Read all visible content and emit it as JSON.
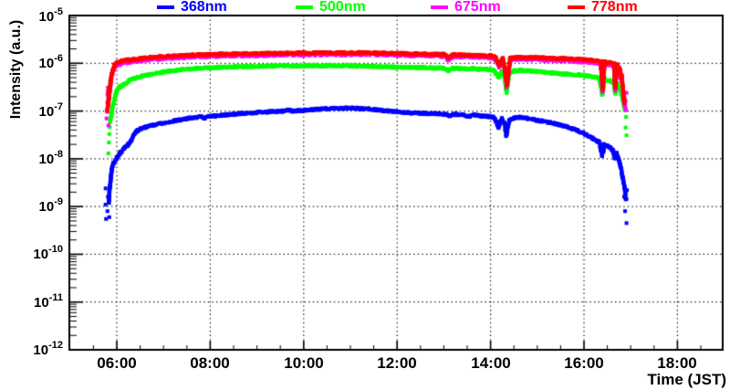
{
  "chart_data": {
    "type": "scatter",
    "title": "",
    "xlabel": "Time (JST)",
    "ylabel": "Intensity (a.u.)",
    "grid": {
      "style": "dotted",
      "color": "#1a1a1a"
    },
    "background": "#ffffff",
    "x_axis": {
      "unit": "hour of day (JST)",
      "range_hours": [
        5.0,
        19.0
      ],
      "major_tick_hours": [
        6,
        8,
        10,
        12,
        14,
        16,
        18
      ],
      "minor_tick_step_hours": 0.5,
      "tick_labels": [
        "06:00",
        "08:00",
        "10:00",
        "12:00",
        "14:00",
        "16:00",
        "18:00"
      ]
    },
    "y_axis": {
      "scale": "log",
      "range": [
        1e-12,
        1e-05
      ],
      "tick_base": "10",
      "tick_exponents": [
        "-5",
        "-6",
        "-7",
        "-8",
        "-9",
        "-10",
        "-11",
        "-12"
      ]
    },
    "legend": {
      "position": "top",
      "entries": [
        "368nm",
        "500nm",
        "675nm",
        "778nm"
      ]
    },
    "series": [
      {
        "name": "368nm",
        "color": "#0000ff",
        "points": [
          [
            5.83,
            1.2e-09
          ],
          [
            5.85,
            2.5e-09
          ],
          [
            5.87,
            4e-09
          ],
          [
            5.9,
            6.5e-09
          ],
          [
            5.93,
            8e-09
          ],
          [
            6.0,
            1.05e-08
          ],
          [
            6.08,
            1.35e-08
          ],
          [
            6.17,
            1.7e-08
          ],
          [
            6.25,
            2e-08
          ],
          [
            6.3,
            2.4e-08
          ],
          [
            6.37,
            3.3e-08
          ],
          [
            6.45,
            3.9e-08
          ],
          [
            6.5,
            4.2e-08
          ],
          [
            6.62,
            4.6e-08
          ],
          [
            6.75,
            5e-08
          ],
          [
            7.0,
            5.6e-08
          ],
          [
            7.25,
            6.3e-08
          ],
          [
            7.5,
            6.9e-08
          ],
          [
            7.7,
            7.4e-08
          ],
          [
            7.8,
            7.6e-08
          ],
          [
            7.88,
            7.1e-08
          ],
          [
            7.97,
            7.7e-08
          ],
          [
            8.1,
            7.9e-08
          ],
          [
            8.3,
            8.3e-08
          ],
          [
            8.5,
            8.6e-08
          ],
          [
            8.75,
            9e-08
          ],
          [
            9.0,
            9.3e-08
          ],
          [
            9.3,
            9.7e-08
          ],
          [
            9.55,
            1e-07
          ],
          [
            9.65,
            1.05e-07
          ],
          [
            9.75,
            1e-07
          ],
          [
            10.0,
            1.04e-07
          ],
          [
            10.3,
            1.09e-07
          ],
          [
            10.6,
            1.13e-07
          ],
          [
            10.9,
            1.15e-07
          ],
          [
            11.15,
            1.14e-07
          ],
          [
            11.4,
            1.1e-07
          ],
          [
            11.7,
            1.03e-07
          ],
          [
            12.0,
            9.6e-08
          ],
          [
            12.3,
            9.2e-08
          ],
          [
            12.6,
            8.9e-08
          ],
          [
            12.9,
            8.7e-08
          ],
          [
            13.05,
            8.5e-08
          ],
          [
            13.12,
            7.9e-08
          ],
          [
            13.2,
            8.5e-08
          ],
          [
            13.4,
            8.4e-08
          ],
          [
            13.55,
            7.7e-08
          ],
          [
            13.65,
            8.3e-08
          ],
          [
            13.8,
            7.9e-08
          ],
          [
            13.95,
            7.7e-08
          ],
          [
            14.08,
            7.3e-08
          ],
          [
            14.17,
            4.6e-08
          ],
          [
            14.24,
            6.9e-08
          ],
          [
            14.3,
            5.5e-08
          ],
          [
            14.34,
            3.1e-08
          ],
          [
            14.4,
            6.5e-08
          ],
          [
            14.5,
            7.2e-08
          ],
          [
            14.62,
            7.4e-08
          ],
          [
            14.8,
            7e-08
          ],
          [
            15.0,
            6.4e-08
          ],
          [
            15.25,
            5.8e-08
          ],
          [
            15.5,
            5.1e-08
          ],
          [
            15.75,
            4.3e-08
          ],
          [
            16.0,
            3.4e-08
          ],
          [
            16.2,
            2.6e-08
          ],
          [
            16.33,
            2.2e-08
          ],
          [
            16.39,
            1.15e-08
          ],
          [
            16.44,
            2e-08
          ],
          [
            16.55,
            1.75e-08
          ],
          [
            16.62,
            1.5e-08
          ],
          [
            16.66,
            1e-08
          ],
          [
            16.7,
            1.3e-08
          ],
          [
            16.76,
            8.5e-09
          ],
          [
            16.82,
            4.5e-09
          ],
          [
            16.87,
            2.4e-09
          ],
          [
            16.9,
            1.4e-09
          ]
        ],
        "scatter": [
          [
            5.76,
            2.4e-09
          ],
          [
            5.76,
            1.1e-09
          ],
          [
            5.77,
            5.5e-10
          ],
          [
            5.8,
            8e-10
          ],
          [
            5.81,
            1.6e-09
          ],
          [
            5.84,
            6e-10
          ],
          [
            16.88,
            8e-10
          ],
          [
            16.91,
            4.5e-10
          ],
          [
            16.86,
            1.6e-09
          ],
          [
            16.92,
            2.2e-09
          ]
        ]
      },
      {
        "name": "500nm",
        "color": "#00ff00",
        "points": [
          [
            5.86,
            6e-08
          ],
          [
            5.89,
            9e-08
          ],
          [
            5.92,
            1.3e-07
          ],
          [
            5.96,
            1.9e-07
          ],
          [
            6.0,
            2.7e-07
          ],
          [
            6.06,
            3.2e-07
          ],
          [
            6.13,
            3.5e-07
          ],
          [
            6.2,
            3.8e-07
          ],
          [
            6.28,
            4.5e-07
          ],
          [
            6.38,
            4.8e-07
          ],
          [
            6.5,
            5.3e-07
          ],
          [
            6.7,
            5.8e-07
          ],
          [
            7.0,
            6.6e-07
          ],
          [
            7.3,
            7.2e-07
          ],
          [
            7.6,
            7.7e-07
          ],
          [
            8.0,
            8.1e-07
          ],
          [
            8.4,
            8.4e-07
          ],
          [
            8.8,
            8.6e-07
          ],
          [
            9.2,
            8.7e-07
          ],
          [
            9.6,
            8.8e-07
          ],
          [
            10.0,
            8.8e-07
          ],
          [
            10.5,
            8.9e-07
          ],
          [
            11.0,
            8.8e-07
          ],
          [
            11.5,
            8.6e-07
          ],
          [
            12.0,
            8.3e-07
          ],
          [
            12.5,
            8.1e-07
          ],
          [
            13.0,
            7.9e-07
          ],
          [
            13.1,
            7e-07
          ],
          [
            13.2,
            7.8e-07
          ],
          [
            13.5,
            7.7e-07
          ],
          [
            13.8,
            7.5e-07
          ],
          [
            14.0,
            7.3e-07
          ],
          [
            14.08,
            7e-07
          ],
          [
            14.17,
            5.2e-07
          ],
          [
            14.24,
            6.6e-07
          ],
          [
            14.3,
            5e-07
          ],
          [
            14.34,
            2.5e-07
          ],
          [
            14.4,
            6.3e-07
          ],
          [
            14.5,
            6.9e-07
          ],
          [
            14.65,
            7.1e-07
          ],
          [
            14.85,
            6.9e-07
          ],
          [
            15.0,
            6.7e-07
          ],
          [
            15.3,
            6.3e-07
          ],
          [
            15.6,
            5.9e-07
          ],
          [
            16.0,
            5.6e-07
          ],
          [
            16.2,
            5.2e-07
          ],
          [
            16.33,
            4.9e-07
          ],
          [
            16.39,
            2.2e-07
          ],
          [
            16.44,
            4.7e-07
          ],
          [
            16.55,
            4.3e-07
          ],
          [
            16.63,
            4e-07
          ],
          [
            16.67,
            2.4e-07
          ],
          [
            16.71,
            3.7e-07
          ],
          [
            16.76,
            3.1e-07
          ],
          [
            16.81,
            2.2e-07
          ],
          [
            16.85,
            1.4e-07
          ],
          [
            16.88,
            1.05e-07
          ]
        ],
        "scatter": [
          [
            5.82,
            1.3e-08
          ],
          [
            5.83,
            2.2e-08
          ],
          [
            5.84,
            3.3e-08
          ],
          [
            5.85,
            4.6e-08
          ],
          [
            16.89,
            4.5e-08
          ],
          [
            16.91,
            3.1e-08
          ],
          [
            16.9,
            7.5e-08
          ]
        ]
      },
      {
        "name": "675nm",
        "color": "#ff00ff",
        "points": [
          [
            5.8,
            1e-07
          ],
          [
            5.82,
            1.6e-07
          ],
          [
            5.84,
            2.5e-07
          ],
          [
            5.86,
            3.4e-07
          ],
          [
            5.88,
            4.8e-07
          ],
          [
            5.91,
            6.5e-07
          ],
          [
            5.95,
            8.2e-07
          ],
          [
            6.0,
            9.2e-07
          ],
          [
            6.1,
            1e-06
          ],
          [
            6.25,
            1.07e-06
          ],
          [
            6.5,
            1.15e-06
          ],
          [
            6.8,
            1.24e-06
          ],
          [
            7.2,
            1.32e-06
          ],
          [
            7.6,
            1.38e-06
          ],
          [
            8.0,
            1.42e-06
          ],
          [
            8.5,
            1.46e-06
          ],
          [
            9.0,
            1.49e-06
          ],
          [
            9.5,
            1.51e-06
          ],
          [
            10.0,
            1.53e-06
          ],
          [
            10.6,
            1.55e-06
          ],
          [
            11.2,
            1.55e-06
          ],
          [
            11.8,
            1.52e-06
          ],
          [
            12.4,
            1.48e-06
          ],
          [
            13.0,
            1.43e-06
          ],
          [
            13.1,
            1.2e-06
          ],
          [
            13.2,
            1.42e-06
          ],
          [
            13.6,
            1.39e-06
          ],
          [
            14.0,
            1.33e-06
          ],
          [
            14.1,
            1.25e-06
          ],
          [
            14.19,
            8.5e-07
          ],
          [
            14.26,
            1.18e-06
          ],
          [
            14.31,
            7e-07
          ],
          [
            14.35,
            3.3e-07
          ],
          [
            14.42,
            1.18e-06
          ],
          [
            14.55,
            1.25e-06
          ],
          [
            14.8,
            1.24e-06
          ],
          [
            15.2,
            1.2e-06
          ],
          [
            15.6,
            1.16e-06
          ],
          [
            16.0,
            1.1e-06
          ],
          [
            16.25,
            1.05e-06
          ],
          [
            16.36,
            1.02e-06
          ],
          [
            16.4,
            2.6e-07
          ],
          [
            16.44,
            1e-06
          ],
          [
            16.55,
            9.6e-07
          ],
          [
            16.64,
            9e-07
          ],
          [
            16.67,
            2.8e-07
          ],
          [
            16.7,
            8.6e-07
          ],
          [
            16.76,
            7e-07
          ],
          [
            16.81,
            4.2e-07
          ],
          [
            16.85,
            2e-07
          ],
          [
            16.88,
            1.2e-07
          ]
        ],
        "scatter": [
          [
            5.78,
            7e-08
          ],
          [
            5.79,
            1.1e-07
          ],
          [
            5.8,
            2.2e-07
          ],
          [
            5.81,
            3.1e-07
          ],
          [
            5.82,
            5e-08
          ],
          [
            16.89,
            1.6e-07
          ],
          [
            16.9,
            1.05e-07
          ],
          [
            16.91,
            2.4e-07
          ]
        ]
      },
      {
        "name": "778nm",
        "color": "#ff0000",
        "points": [
          [
            5.81,
            1.2e-07
          ],
          [
            5.83,
            2e-07
          ],
          [
            5.85,
            3e-07
          ],
          [
            5.87,
            4.3e-07
          ],
          [
            5.89,
            5.8e-07
          ],
          [
            5.92,
            7.5e-07
          ],
          [
            5.95,
            9e-07
          ],
          [
            6.0,
            1.03e-06
          ],
          [
            6.1,
            1.12e-06
          ],
          [
            6.25,
            1.18e-06
          ],
          [
            6.5,
            1.26e-06
          ],
          [
            6.8,
            1.35e-06
          ],
          [
            7.2,
            1.43e-06
          ],
          [
            7.6,
            1.49e-06
          ],
          [
            8.0,
            1.53e-06
          ],
          [
            8.5,
            1.57e-06
          ],
          [
            9.0,
            1.6e-06
          ],
          [
            9.5,
            1.62e-06
          ],
          [
            10.0,
            1.64e-06
          ],
          [
            10.6,
            1.66e-06
          ],
          [
            11.2,
            1.66e-06
          ],
          [
            11.8,
            1.63e-06
          ],
          [
            12.4,
            1.58e-06
          ],
          [
            13.0,
            1.53e-06
          ],
          [
            13.1,
            1.3e-06
          ],
          [
            13.2,
            1.52e-06
          ],
          [
            13.6,
            1.48e-06
          ],
          [
            14.0,
            1.43e-06
          ],
          [
            14.1,
            1.34e-06
          ],
          [
            14.19,
            9.2e-07
          ],
          [
            14.26,
            1.28e-06
          ],
          [
            14.31,
            7.5e-07
          ],
          [
            14.35,
            3.6e-07
          ],
          [
            14.42,
            1.27e-06
          ],
          [
            14.55,
            1.34e-06
          ],
          [
            14.8,
            1.33e-06
          ],
          [
            15.2,
            1.29e-06
          ],
          [
            15.6,
            1.25e-06
          ],
          [
            16.0,
            1.2e-06
          ],
          [
            16.25,
            1.14e-06
          ],
          [
            16.36,
            1.1e-06
          ],
          [
            16.4,
            2.9e-07
          ],
          [
            16.44,
            1.08e-06
          ],
          [
            16.55,
            1.04e-06
          ],
          [
            16.64,
            9.8e-07
          ],
          [
            16.67,
            3.1e-07
          ],
          [
            16.7,
            9.4e-07
          ],
          [
            16.76,
            7.8e-07
          ],
          [
            16.81,
            5e-07
          ],
          [
            16.84,
            2.6e-07
          ],
          [
            16.86,
            1.5e-07
          ]
        ],
        "scatter": [
          [
            5.79,
            1e-07
          ],
          [
            5.8,
            1.5e-07
          ],
          [
            5.81,
            2.6e-07
          ],
          [
            16.87,
            1.8e-07
          ]
        ]
      }
    ]
  }
}
